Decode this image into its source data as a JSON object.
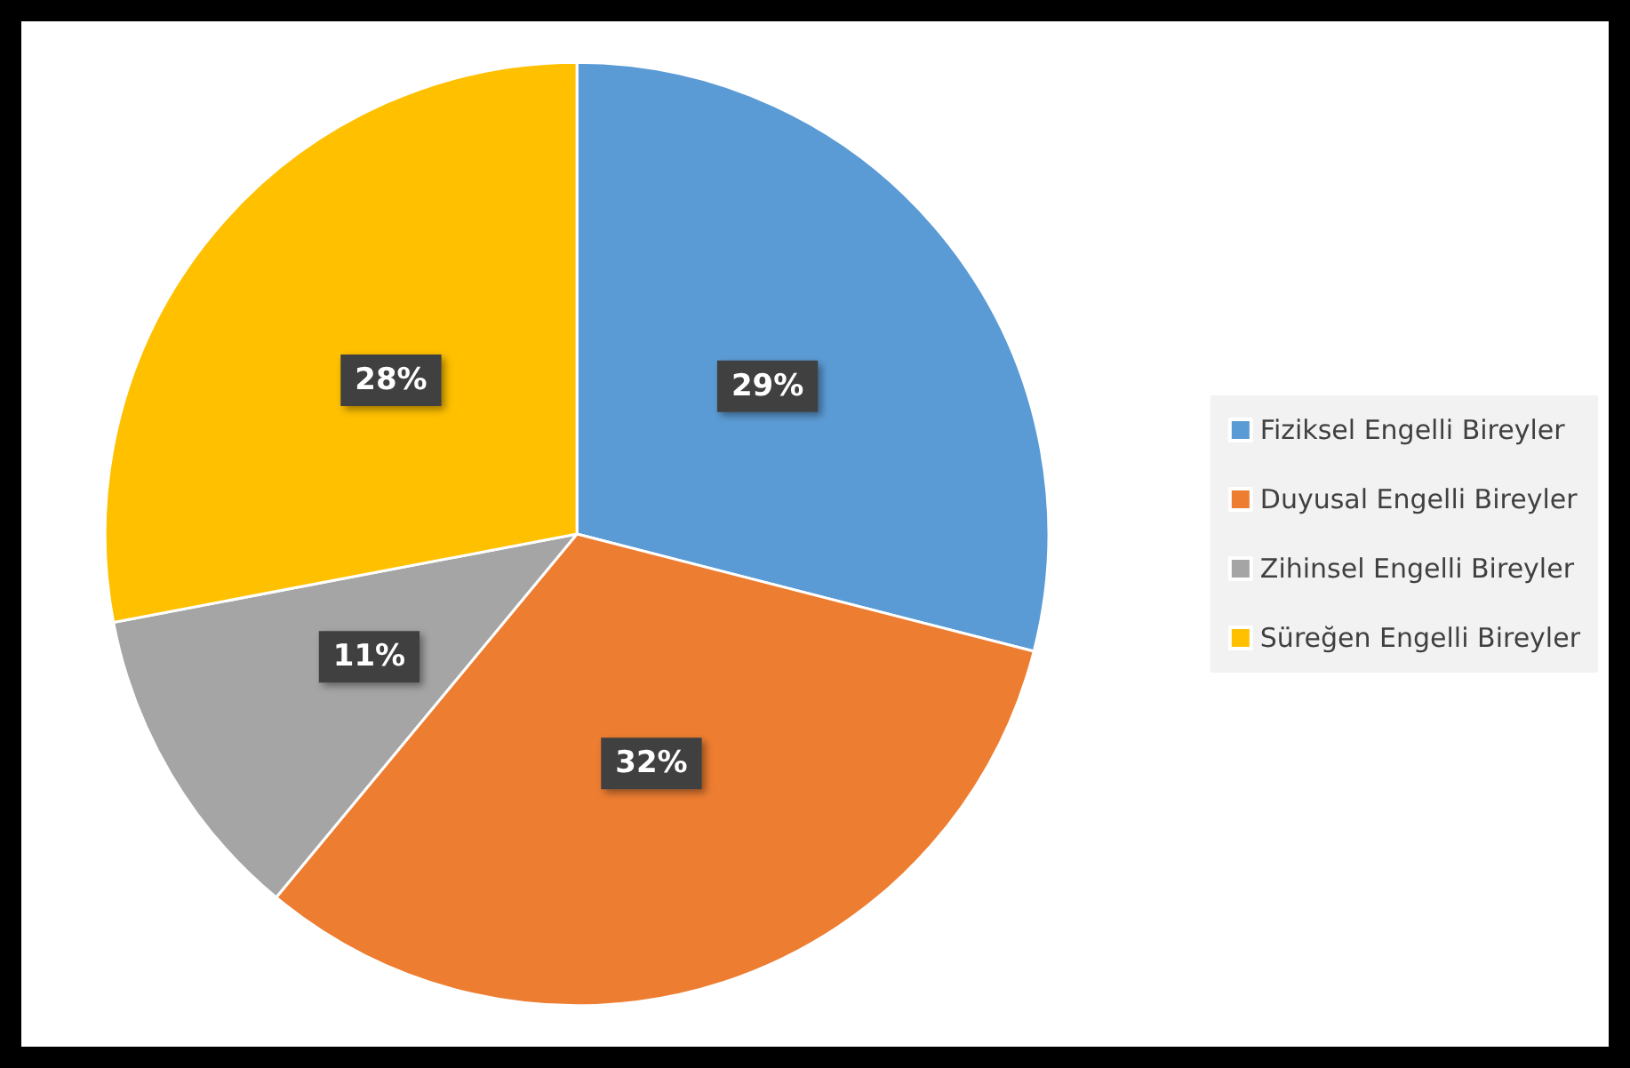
{
  "chart_data": {
    "type": "pie",
    "categories": [
      "Fiziksel Engelli Bireyler",
      "Duyusal Engelli Bireyler",
      "Zihinsel Engelli Bireyler",
      "Süreğen Engelli Bireyler"
    ],
    "values": [
      29,
      32,
      11,
      28
    ],
    "colors": [
      "#5b9bd5",
      "#ed7d31",
      "#a5a5a5",
      "#ffc000"
    ],
    "value_labels": [
      "29%",
      "32%",
      "11%",
      "28%"
    ],
    "legend": "right"
  }
}
